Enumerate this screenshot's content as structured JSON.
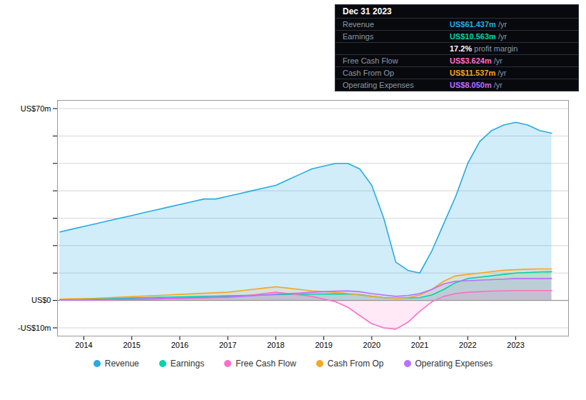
{
  "chart_data": {
    "type": "area",
    "x": [
      2013.5,
      2013.75,
      2014.0,
      2014.25,
      2014.5,
      2014.75,
      2015.0,
      2015.25,
      2015.5,
      2015.75,
      2016.0,
      2016.25,
      2016.5,
      2016.75,
      2017.0,
      2017.25,
      2017.5,
      2017.75,
      2018.0,
      2018.25,
      2018.5,
      2018.75,
      2019.0,
      2019.25,
      2019.5,
      2019.75,
      2020.0,
      2020.25,
      2020.5,
      2020.75,
      2021.0,
      2021.25,
      2021.5,
      2021.75,
      2022.0,
      2022.25,
      2022.5,
      2022.75,
      2023.0,
      2023.25,
      2023.5,
      2023.75
    ],
    "series": [
      {
        "name": "Revenue",
        "color": "#29abe2",
        "values": [
          25,
          26,
          27,
          28,
          29,
          30,
          31,
          32,
          33,
          34,
          35,
          36,
          37,
          37,
          38,
          39,
          40,
          41,
          42,
          44,
          46,
          48,
          49,
          50,
          50,
          48,
          42,
          30,
          14,
          11,
          10,
          18,
          28,
          38,
          50,
          58,
          62,
          64,
          65,
          64,
          62,
          61
        ]
      },
      {
        "name": "Earnings",
        "color": "#00d4aa",
        "values": [
          0.3,
          0.4,
          0.5,
          0.6,
          0.7,
          0.8,
          0.9,
          1.0,
          1.1,
          1.2,
          1.3,
          1.4,
          1.5,
          1.6,
          1.7,
          1.8,
          1.9,
          2.0,
          2.1,
          2.2,
          2.2,
          2.3,
          2.3,
          2.4,
          2.3,
          2.1,
          1.5,
          1.0,
          0.8,
          0.9,
          1.0,
          2.0,
          4.0,
          6.5,
          8.0,
          8.5,
          9.0,
          9.5,
          10.0,
          10.2,
          10.4,
          10.5
        ]
      },
      {
        "name": "Free Cash Flow",
        "color": "#ff6ec7",
        "values": [
          0.1,
          0.1,
          0.1,
          0.2,
          0.2,
          0.3,
          0.3,
          0.4,
          0.5,
          0.6,
          0.7,
          0.8,
          0.9,
          1.0,
          1.1,
          1.5,
          2.0,
          2.5,
          3.0,
          2.5,
          2.0,
          1.5,
          0.5,
          -0.5,
          -2.5,
          -5.5,
          -8.5,
          -10.0,
          -10.5,
          -8.0,
          -4.0,
          -0.5,
          1.5,
          2.5,
          3.0,
          3.2,
          3.4,
          3.5,
          3.6,
          3.6,
          3.6,
          3.6
        ]
      },
      {
        "name": "Cash From Op",
        "color": "#f5a623",
        "values": [
          0.5,
          0.6,
          0.7,
          0.8,
          1.0,
          1.2,
          1.4,
          1.6,
          1.8,
          2.0,
          2.2,
          2.4,
          2.6,
          2.8,
          3.0,
          3.5,
          4.0,
          4.5,
          5.0,
          4.5,
          4.0,
          3.5,
          3.2,
          3.0,
          2.5,
          2.0,
          1.5,
          1.0,
          0.8,
          1.0,
          2.0,
          4.0,
          7.0,
          9.0,
          9.5,
          10.0,
          10.5,
          11.0,
          11.2,
          11.4,
          11.5,
          11.5
        ]
      },
      {
        "name": "Operating Expenses",
        "color": "#bd6fff",
        "values": [
          0.1,
          0.1,
          0.1,
          0.2,
          0.3,
          0.4,
          0.5,
          0.6,
          0.7,
          0.8,
          0.9,
          1.0,
          1.1,
          1.2,
          1.3,
          1.5,
          1.7,
          2.0,
          2.3,
          2.5,
          2.7,
          3.0,
          3.2,
          3.4,
          3.5,
          3.2,
          2.5,
          2.0,
          1.5,
          1.8,
          2.5,
          4.0,
          6.0,
          7.0,
          7.2,
          7.4,
          7.6,
          7.8,
          8.0,
          8.0,
          8.0,
          8.0
        ]
      }
    ],
    "xlim": [
      2013.45,
      2024.1
    ],
    "xticks": [
      2014,
      2015,
      2016,
      2017,
      2018,
      2019,
      2020,
      2021,
      2022,
      2023
    ],
    "ylim": [
      -13,
      73
    ],
    "yticks": [
      {
        "value": 70,
        "label": "US$70m"
      },
      {
        "value": 60,
        "label": null
      },
      {
        "value": 50,
        "label": null
      },
      {
        "value": 40,
        "label": null
      },
      {
        "value": 30,
        "label": null
      },
      {
        "value": 20,
        "label": null
      },
      {
        "value": 10,
        "label": null
      },
      {
        "value": 0,
        "label": "US$0"
      },
      {
        "value": -10,
        "label": "-US$10m"
      }
    ],
    "grid": "y",
    "legend": "bottom",
    "annotations": {
      "title": "Dec 31 2023",
      "rows": [
        {
          "label": "Revenue",
          "value": "US$61.437m",
          "suffix": " /yr",
          "color": "#29abe2"
        },
        {
          "label": "Earnings",
          "value": "US$10.563m",
          "suffix": " /yr",
          "color": "#00d4aa"
        },
        {
          "value": "17.2%",
          "suffix": " profit margin",
          "color": "#ffffff"
        },
        {
          "label": "Free Cash Flow",
          "value": "US$3.624m",
          "suffix": " /yr",
          "color": "#ff6ec7"
        },
        {
          "label": "Cash From Op",
          "value": "US$11.537m",
          "suffix": " /yr",
          "color": "#f5a623"
        },
        {
          "label": "Operating Expenses",
          "value": "US$8.050m",
          "suffix": " /yr",
          "color": "#bd6fff"
        }
      ]
    }
  }
}
